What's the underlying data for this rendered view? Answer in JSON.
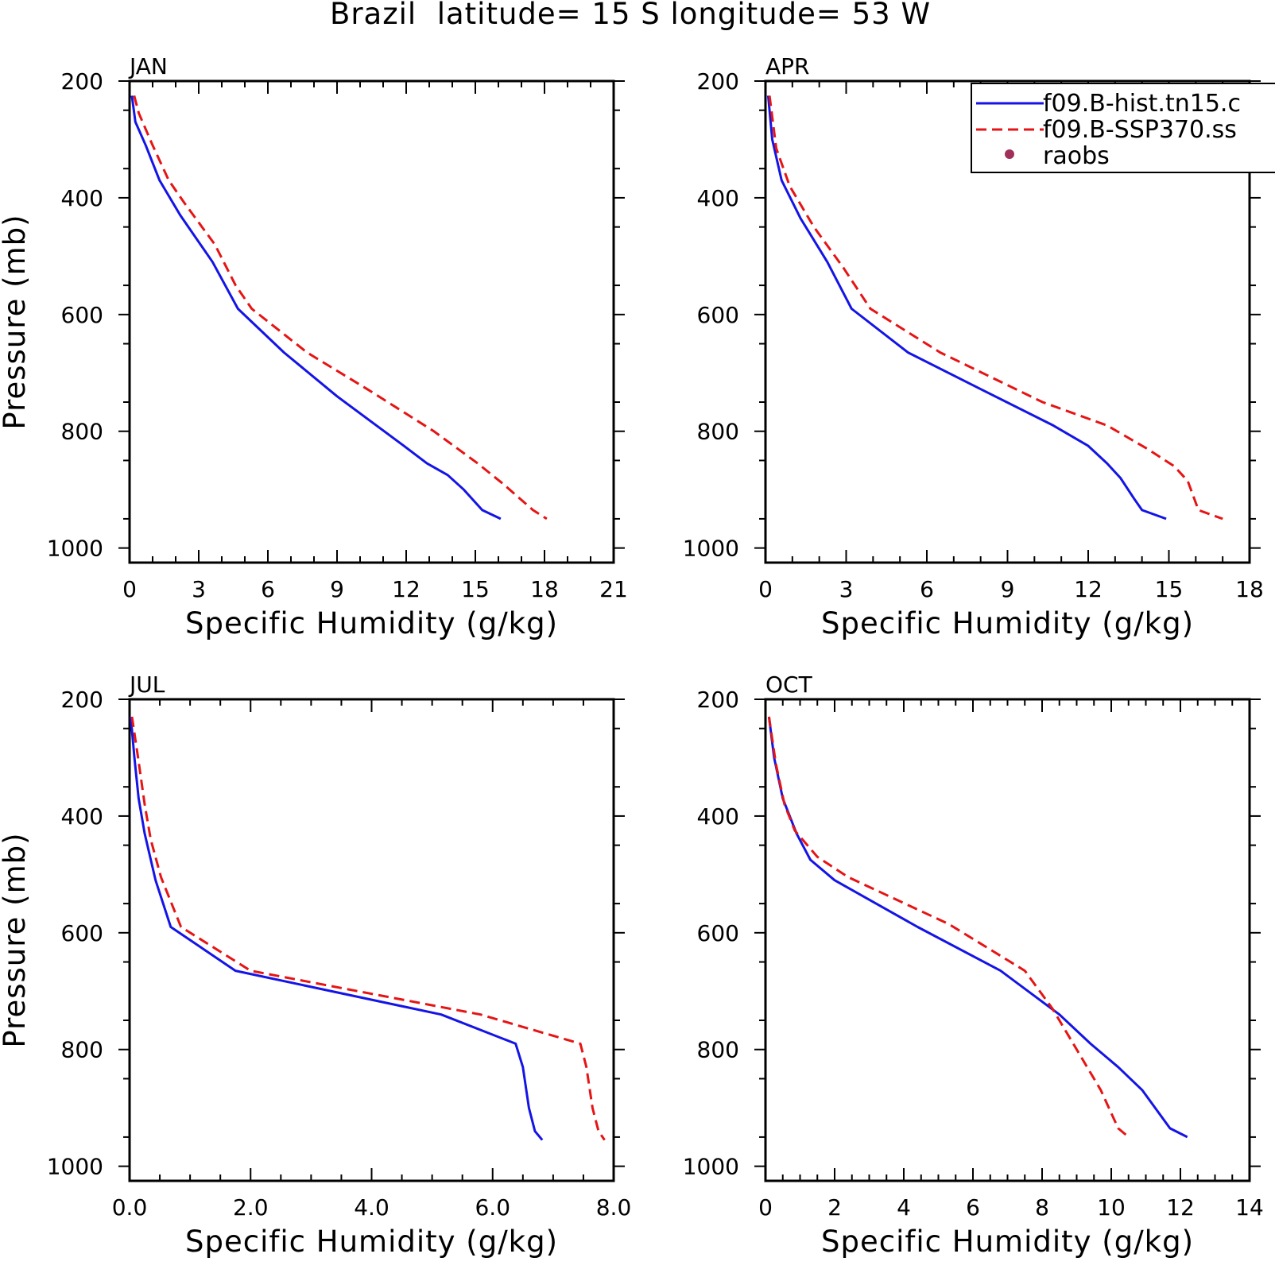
{
  "figure_title": "Brazil  latitude= 15 S longitude= 53 W",
  "legend": {
    "entries": [
      {
        "label": "f09.B-hist.tn15.c",
        "color": "#1414e6",
        "style": "solid"
      },
      {
        "label": "f09.B-SSP370.ss",
        "color": "#e61414",
        "style": "dashed"
      },
      {
        "label": "raobs",
        "color": "#a0305a",
        "style": "dot"
      }
    ]
  },
  "chart_data": [
    {
      "type": "line",
      "title": "JAN",
      "xlabel": "Specific Humidity (g/kg)",
      "ylabel": "Pressure (mb)",
      "xlim": [
        0,
        21
      ],
      "ylim": [
        200,
        1025
      ],
      "y_inverted": true,
      "xticks": [
        "0",
        "3",
        "6",
        "9",
        "12",
        "15",
        "18",
        "21"
      ],
      "xtick_values": [
        0,
        3,
        6,
        9,
        12,
        15,
        18,
        21
      ],
      "yticks": [
        "200",
        "400",
        "600",
        "800",
        "1000"
      ],
      "ytick_values": [
        200,
        400,
        600,
        800,
        1000
      ],
      "series": [
        {
          "name": "f09.B-hist.tn15.c",
          "x": [
            0.1,
            0.25,
            0.7,
            1.3,
            2.2,
            3.6,
            4.7,
            6.7,
            9.0,
            11.9,
            12.9,
            13.8,
            14.5,
            15.3,
            16.1
          ],
          "y": [
            225,
            270,
            310,
            370,
            430,
            510,
            590,
            665,
            740,
            825,
            855,
            875,
            900,
            935,
            950
          ]
        },
        {
          "name": "f09.B-SSP370.ss",
          "x": [
            0.2,
            0.4,
            1.0,
            1.7,
            2.4,
            3.7,
            4.6,
            5.3,
            7.7,
            10.4,
            13.2,
            15.1,
            16.2,
            17.5,
            18.1
          ],
          "y": [
            225,
            255,
            310,
            370,
            410,
            480,
            550,
            590,
            665,
            730,
            800,
            855,
            890,
            935,
            950
          ]
        },
        {
          "name": "raobs",
          "x": [],
          "y": []
        }
      ]
    },
    {
      "type": "line",
      "title": "APR",
      "xlabel": "Specific Humidity (g/kg)",
      "ylabel": "",
      "xlim": [
        0,
        18
      ],
      "ylim": [
        200,
        1025
      ],
      "y_inverted": true,
      "xticks": [
        "0",
        "3",
        "6",
        "9",
        "12",
        "15",
        "18"
      ],
      "xtick_values": [
        0,
        3,
        6,
        9,
        12,
        15,
        18
      ],
      "yticks": [
        "200",
        "400",
        "600",
        "800",
        "1000"
      ],
      "ytick_values": [
        200,
        400,
        600,
        800,
        1000
      ],
      "series": [
        {
          "name": "f09.B-hist.tn15.c",
          "x": [
            0.1,
            0.25,
            0.6,
            1.3,
            2.3,
            3.2,
            5.3,
            8.1,
            10.7,
            12.0,
            12.7,
            13.2,
            13.7,
            14.0,
            14.9
          ],
          "y": [
            225,
            300,
            370,
            435,
            510,
            590,
            665,
            730,
            790,
            825,
            855,
            880,
            915,
            935,
            950
          ]
        },
        {
          "name": "f09.B-SSP370.ss",
          "x": [
            0.15,
            0.4,
            0.9,
            1.8,
            2.9,
            3.9,
            6.5,
            10.3,
            12.7,
            14.2,
            15.2,
            15.7,
            16.1,
            17.0
          ],
          "y": [
            225,
            315,
            380,
            450,
            520,
            590,
            665,
            750,
            790,
            830,
            860,
            885,
            935,
            950
          ]
        },
        {
          "name": "raobs",
          "x": [],
          "y": []
        }
      ]
    },
    {
      "type": "line",
      "title": "JUL",
      "xlabel": "Specific Humidity (g/kg)",
      "ylabel": "Pressure (mb)",
      "xlim": [
        0,
        8
      ],
      "ylim": [
        200,
        1025
      ],
      "y_inverted": true,
      "xticks": [
        "0.0",
        "2.0",
        "4.0",
        "6.0",
        "8.0"
      ],
      "xtick_values": [
        0,
        2,
        4,
        6,
        8
      ],
      "yticks": [
        "200",
        "400",
        "600",
        "800",
        "1000"
      ],
      "ytick_values": [
        200,
        400,
        600,
        800,
        1000
      ],
      "series": [
        {
          "name": "f09.B-hist.tn15.c",
          "x": [
            0.02,
            0.08,
            0.15,
            0.25,
            0.43,
            0.68,
            1.75,
            5.15,
            6.38,
            6.5,
            6.6,
            6.7,
            6.82
          ],
          "y": [
            230,
            300,
            370,
            430,
            510,
            590,
            665,
            740,
            790,
            830,
            900,
            940,
            955
          ]
        },
        {
          "name": "f09.B-SSP370.ss",
          "x": [
            0.04,
            0.14,
            0.25,
            0.35,
            0.52,
            0.85,
            2.0,
            5.8,
            7.45,
            7.55,
            7.65,
            7.75,
            7.85
          ],
          "y": [
            230,
            300,
            380,
            440,
            505,
            590,
            665,
            740,
            790,
            830,
            900,
            940,
            955
          ]
        },
        {
          "name": "raobs",
          "x": [],
          "y": []
        }
      ]
    },
    {
      "type": "line",
      "title": "OCT",
      "xlabel": "Specific Humidity (g/kg)",
      "ylabel": "",
      "xlim": [
        0,
        14
      ],
      "ylim": [
        200,
        1025
      ],
      "y_inverted": true,
      "xticks": [
        "0",
        "2",
        "4",
        "6",
        "8",
        "10",
        "12",
        "14"
      ],
      "xtick_values": [
        0,
        2,
        4,
        6,
        8,
        10,
        12,
        14
      ],
      "yticks": [
        "200",
        "400",
        "600",
        "800",
        "1000"
      ],
      "ytick_values": [
        200,
        400,
        600,
        800,
        1000
      ],
      "series": [
        {
          "name": "f09.B-hist.tn15.c",
          "x": [
            0.1,
            0.25,
            0.5,
            0.9,
            1.3,
            2.0,
            4.4,
            6.8,
            8.5,
            9.4,
            10.2,
            10.9,
            11.7,
            12.2
          ],
          "y": [
            230,
            300,
            370,
            430,
            475,
            510,
            590,
            665,
            740,
            790,
            830,
            870,
            935,
            950
          ]
        },
        {
          "name": "f09.B-SSP370.ss",
          "x": [
            0.1,
            0.3,
            0.55,
            0.85,
            1.5,
            2.4,
            5.3,
            7.5,
            8.3,
            8.9,
            9.7,
            10.2,
            10.5
          ],
          "y": [
            230,
            310,
            380,
            425,
            470,
            505,
            585,
            665,
            730,
            790,
            870,
            935,
            950
          ]
        },
        {
          "name": "raobs",
          "x": [],
          "y": []
        }
      ]
    }
  ]
}
